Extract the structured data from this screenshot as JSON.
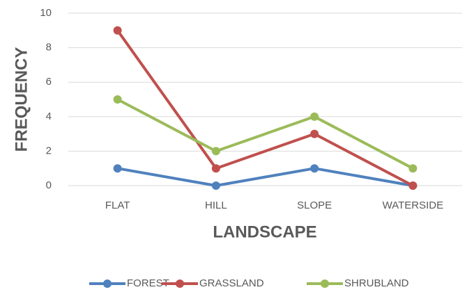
{
  "chart_data": {
    "type": "line",
    "categories": [
      "FLAT",
      "HILL",
      "SLOPE",
      "WATERSIDE"
    ],
    "series": [
      {
        "name": "FOREST",
        "color": "#4f81bd",
        "values": [
          1,
          0,
          1,
          0
        ]
      },
      {
        "name": "GRASSLAND",
        "color": "#c0504d",
        "values": [
          9,
          1,
          3,
          0
        ]
      },
      {
        "name": "SHRUBLAND",
        "color": "#9bbb59",
        "values": [
          5,
          2,
          4,
          1
        ]
      }
    ],
    "x_label": "LANDSCAPE",
    "y_label": "FREQUENCY",
    "ylim": [
      0,
      10
    ],
    "yticks": [
      0,
      2,
      4,
      6,
      8,
      10
    ],
    "grid": true,
    "legend": "bottom"
  }
}
